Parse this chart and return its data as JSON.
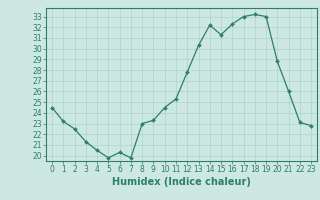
{
  "title": "",
  "xlabel": "Humidex (Indice chaleur)",
  "x": [
    0,
    1,
    2,
    3,
    4,
    5,
    6,
    7,
    8,
    9,
    10,
    11,
    12,
    13,
    14,
    15,
    16,
    17,
    18,
    19,
    20,
    21,
    22,
    23
  ],
  "y": [
    24.5,
    23.2,
    22.5,
    21.3,
    20.5,
    19.8,
    20.3,
    19.8,
    23.0,
    23.3,
    24.5,
    25.3,
    27.8,
    30.3,
    32.2,
    31.3,
    32.3,
    33.0,
    33.2,
    33.0,
    28.8,
    26.0,
    23.1,
    22.8
  ],
  "line_color": "#2e7d6e",
  "marker_color": "#2e7d6e",
  "bg_color": "#cce8e0",
  "grid_color": "#aad4cc",
  "ylim": [
    19.5,
    33.8
  ],
  "xlim": [
    -0.5,
    23.5
  ],
  "yticks": [
    20,
    21,
    22,
    23,
    24,
    25,
    26,
    27,
    28,
    29,
    30,
    31,
    32,
    33
  ],
  "xticks": [
    0,
    1,
    2,
    3,
    4,
    5,
    6,
    7,
    8,
    9,
    10,
    11,
    12,
    13,
    14,
    15,
    16,
    17,
    18,
    19,
    20,
    21,
    22,
    23
  ],
  "tick_fontsize": 5.5,
  "label_fontsize": 7,
  "spine_color": "#2e7d6e"
}
